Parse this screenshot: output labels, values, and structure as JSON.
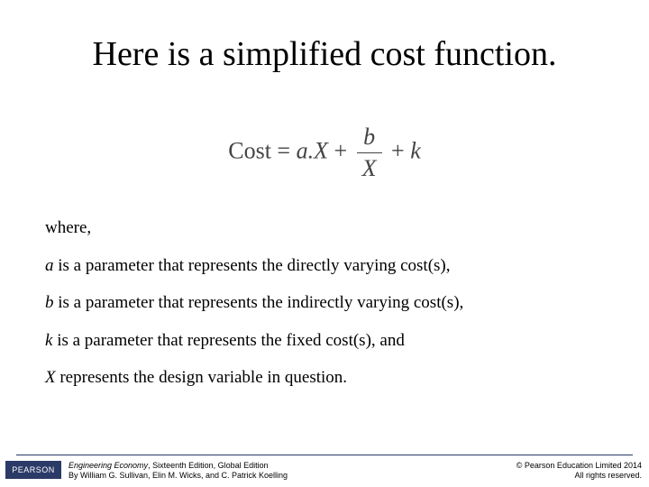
{
  "title": "Here is a simplified cost function.",
  "equation": {
    "lhs": "Cost",
    "term1_coef": "a.X",
    "frac_num": "b",
    "frac_den": "X",
    "term3": "k"
  },
  "where_label": "where,",
  "definitions": {
    "a_var": "a",
    "a_text": " is a parameter that represents the directly varying cost(s),",
    "b_var": "b",
    "b_text": " is a parameter that represents the indirectly varying cost(s),",
    "k_var": "k",
    "k_text": " is a parameter that represents the fixed cost(s), and",
    "x_var": "X",
    "x_text": " represents the design variable in question."
  },
  "footer": {
    "logo": "PEARSON",
    "book_title": "Engineering Economy",
    "edition": ", Sixteenth Edition, Global Edition",
    "authors": "By William G. Sullivan, Elin M. Wicks, and C. Patrick Koelling",
    "copyright": "© Pearson Education Limited 2014",
    "rights": "All rights reserved."
  },
  "colors": {
    "rule": "#2b3a67",
    "logo_bg": "#2b3a67",
    "text": "#000000",
    "equation_text": "#444444"
  }
}
